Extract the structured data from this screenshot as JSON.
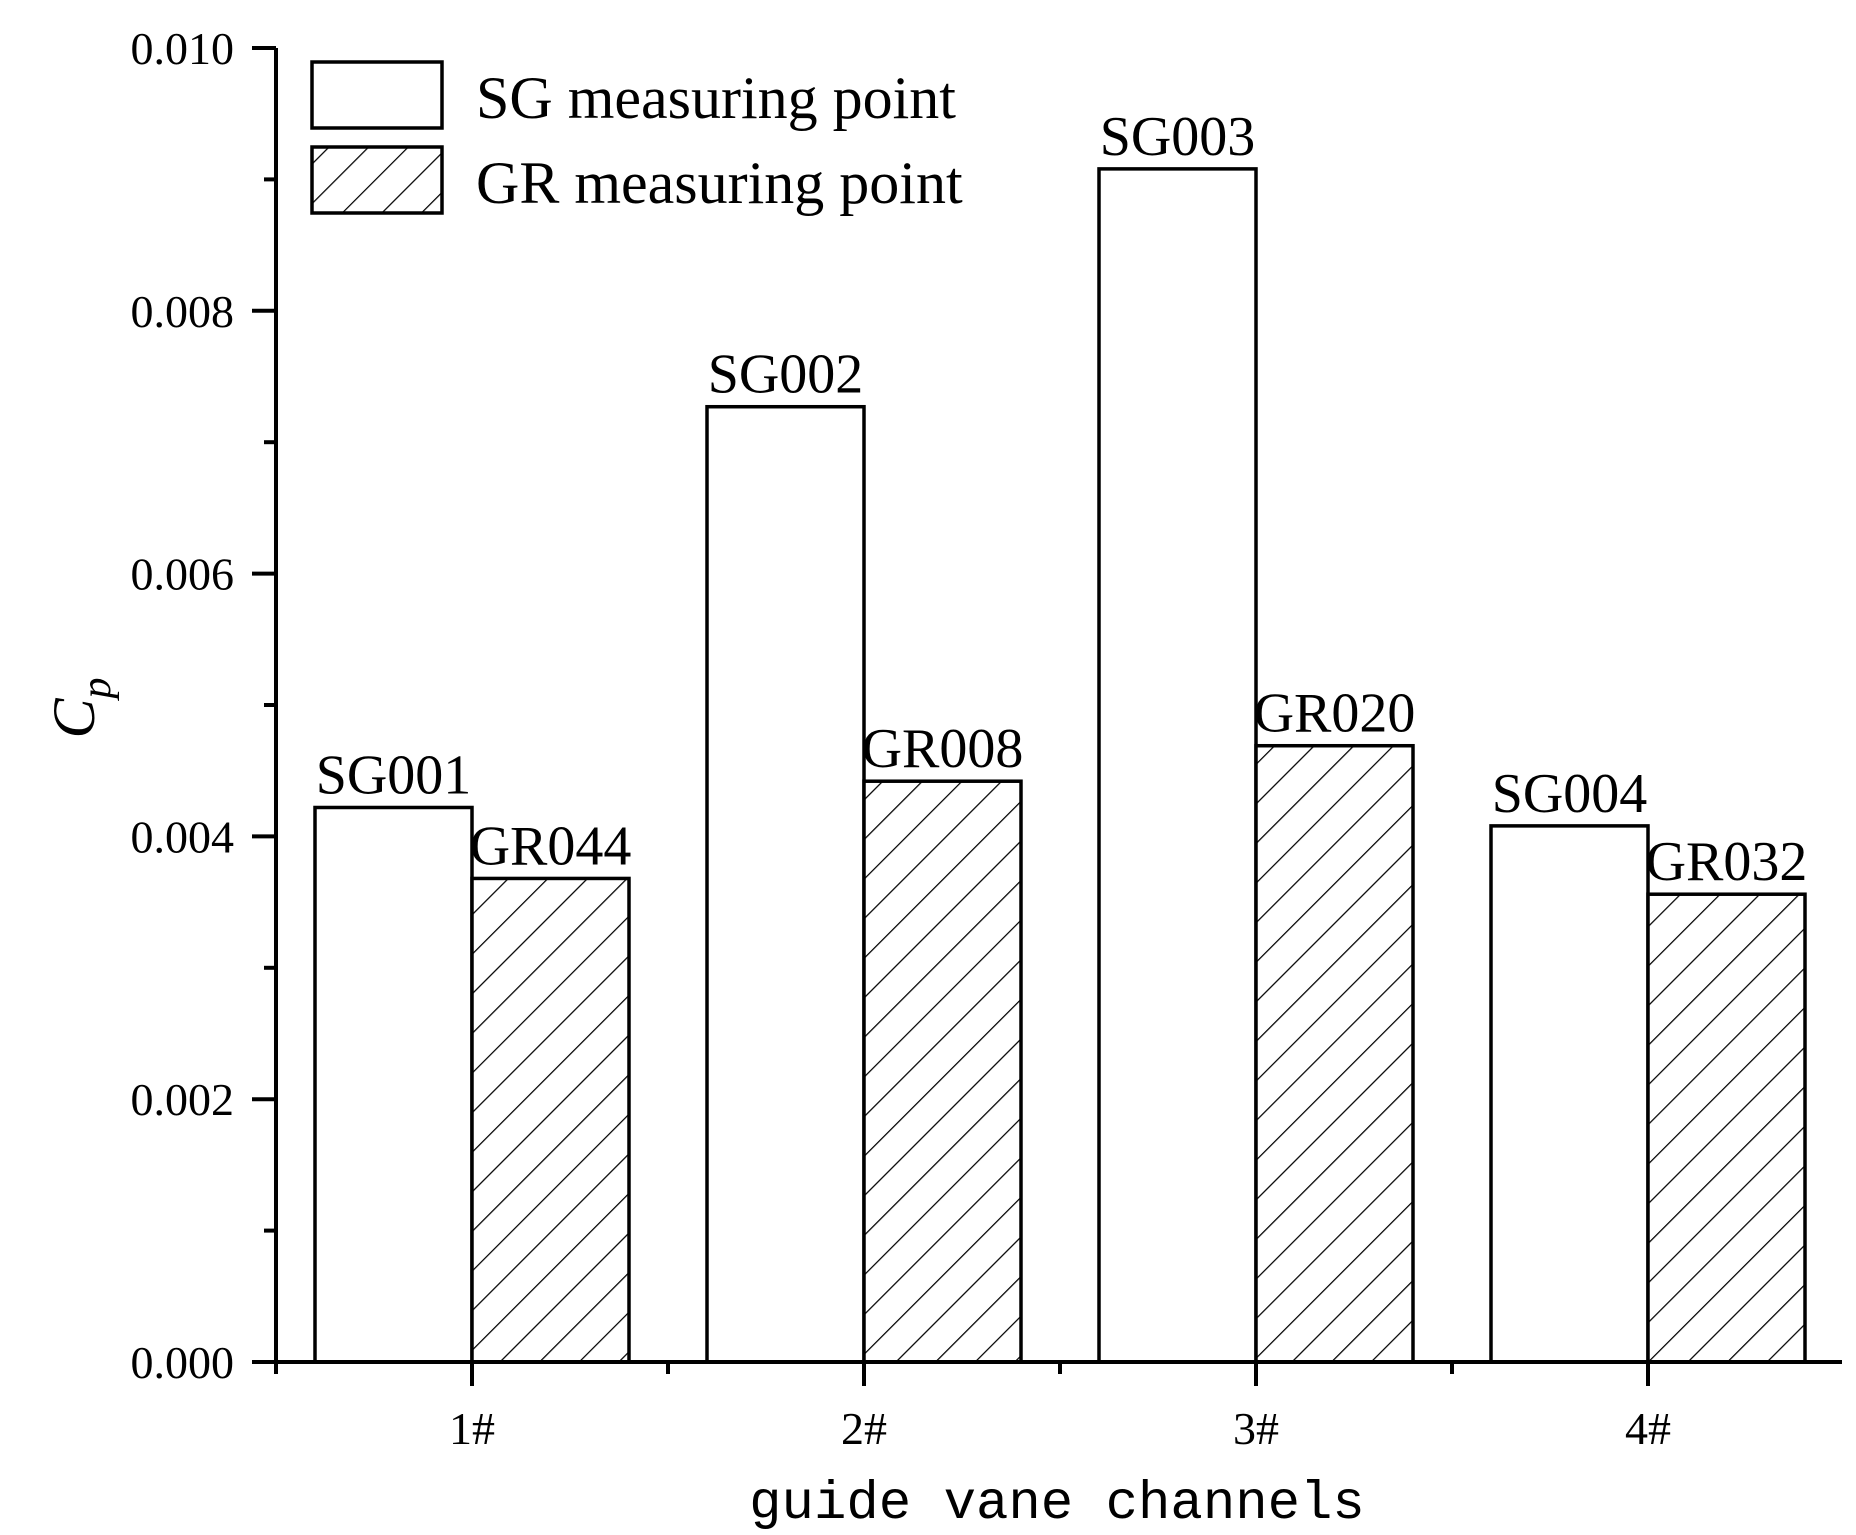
{
  "chart_data": {
    "type": "bar",
    "xlabel": "guide vane channels",
    "ylabel_main": "C",
    "ylabel_sub": "p",
    "categories": [
      "1#",
      "2#",
      "3#",
      "4#"
    ],
    "ylim": [
      0,
      0.01
    ],
    "yticks": [
      "0.000",
      "0.002",
      "0.004",
      "0.006",
      "0.008",
      "0.010"
    ],
    "grid": false,
    "legend_position": "top-left",
    "series": [
      {
        "name": "SG measuring point",
        "fill": "white",
        "values": [
          0.00422,
          0.00727,
          0.00908,
          0.00408
        ],
        "labels": [
          "SG001",
          "SG002",
          "SG003",
          "SG004"
        ]
      },
      {
        "name": "GR measuring point",
        "fill": "hatched",
        "values": [
          0.00368,
          0.00442,
          0.00469,
          0.00356
        ],
        "labels": [
          "GR044",
          "GR008",
          "GR020",
          "GR032"
        ]
      }
    ]
  }
}
